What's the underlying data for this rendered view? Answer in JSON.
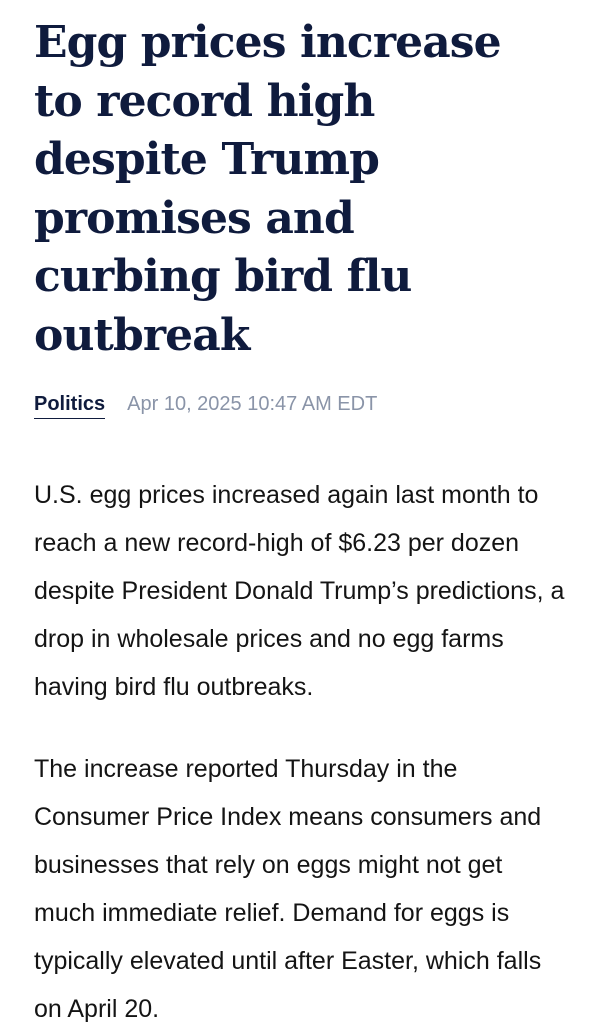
{
  "article": {
    "headline": "Egg prices increase to record high despite Trump promises and curbing bird flu outbreak",
    "category": "Politics",
    "timestamp": "Apr 10, 2025 10:47 AM EDT",
    "paragraphs": [
      "U.S. egg prices increased again last month to reach a new record-high of $6.23 per dozen despite President Donald Trump’s predictions, a drop in wholesale prices and no egg farms having bird flu outbreaks.",
      "The increase reported Thursday in the Consumer Price Index means consumers and businesses that rely on eggs might not get much immediate relief. Demand for eggs is typically elevated until after Easter, which falls on April 20."
    ]
  },
  "colors": {
    "headline": "#0f1b3d",
    "timestamp": "#8a94a8",
    "body_text": "#141414"
  }
}
